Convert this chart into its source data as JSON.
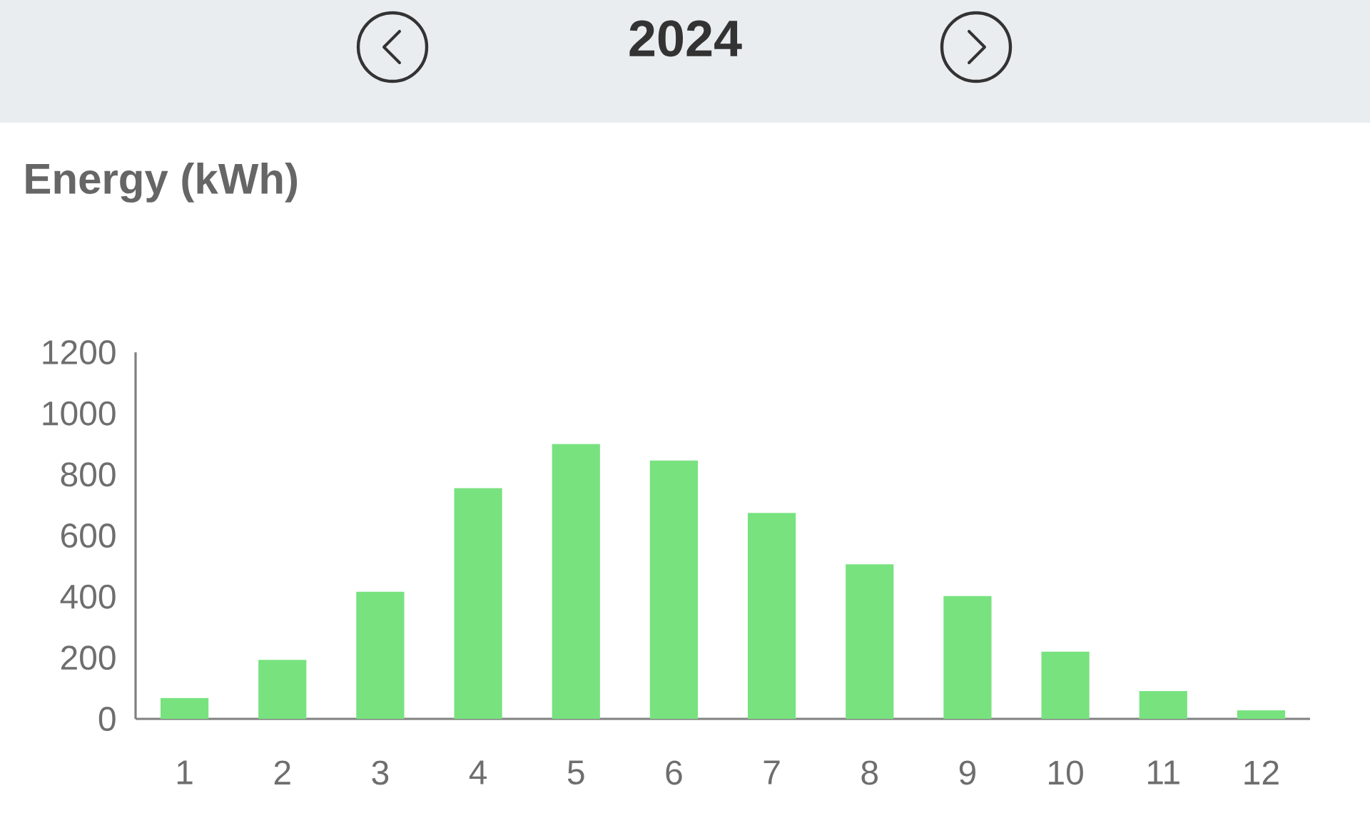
{
  "chart_data": {
    "type": "bar",
    "title": "2024",
    "ylabel": "Energy (kWh)",
    "categories": [
      "1",
      "2",
      "3",
      "4",
      "5",
      "6",
      "7",
      "8",
      "9",
      "10",
      "11",
      "12"
    ],
    "values": [
      68,
      193,
      416,
      755,
      900,
      846,
      674,
      506,
      402,
      220,
      91,
      28
    ],
    "color": "#78e27f",
    "ylim": [
      0,
      1200
    ],
    "yticks": [
      0,
      200,
      400,
      600,
      800,
      1000,
      1200
    ]
  }
}
